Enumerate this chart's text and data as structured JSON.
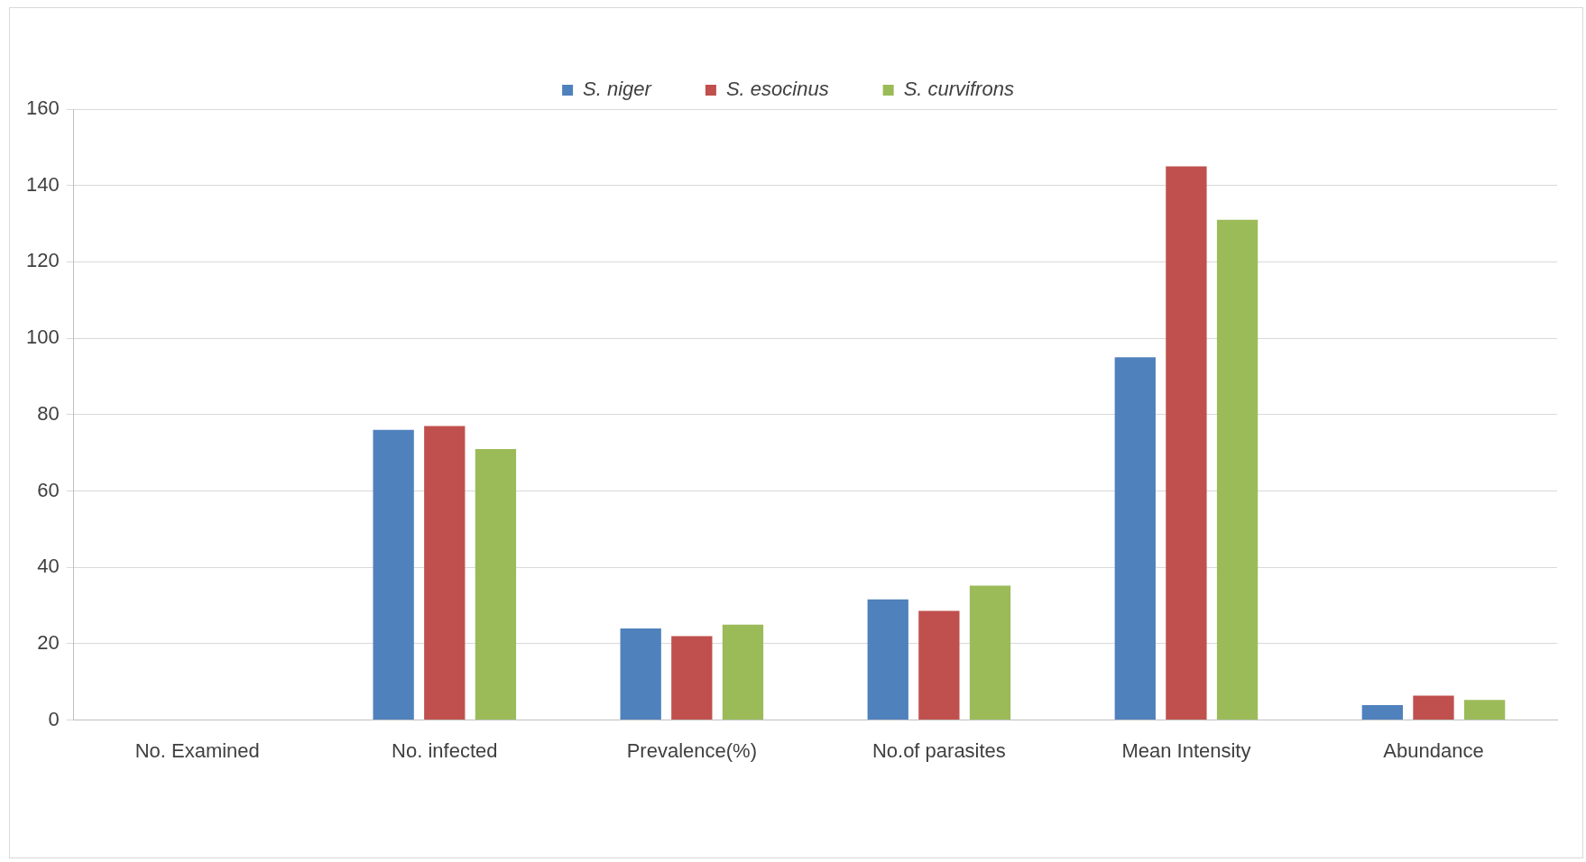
{
  "chart_data": {
    "type": "bar",
    "categories": [
      "No. Examined",
      "No. infected",
      "Prevalence(%)",
      "No.of parasites",
      "Mean Intensity",
      "Abundance"
    ],
    "series": [
      {
        "name": "S. niger",
        "color": "#4f81bd",
        "values": [
          null,
          76,
          24,
          31.6,
          95,
          3.9
        ]
      },
      {
        "name": "S. esocinus",
        "color": "#c0504d",
        "values": [
          null,
          77,
          22,
          28.6,
          145,
          6.4
        ]
      },
      {
        "name": "S. curvifrons",
        "color": "#9bbb59",
        "values": [
          null,
          71,
          25,
          35.2,
          131,
          5.3
        ]
      }
    ],
    "ylim": [
      0,
      160
    ],
    "yticks": [
      0,
      20,
      40,
      60,
      80,
      100,
      120,
      140,
      160
    ],
    "grid": "y",
    "legend": "top"
  }
}
